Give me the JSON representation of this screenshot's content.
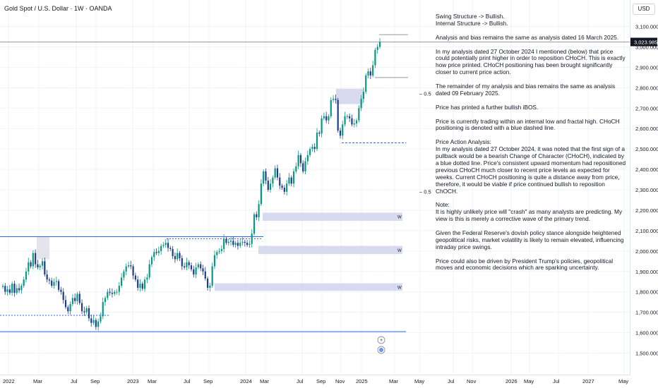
{
  "header": {
    "symbol_title": "Gold Spot / U.S. Dollar · 1W · OANDA",
    "currency_label": "USD"
  },
  "price_axis": {
    "ticks": [
      "3,100.000",
      "3,000.000",
      "2,900.000",
      "2,800.000",
      "2,700.000",
      "2,600.000",
      "2,500.000",
      "2,400.000",
      "2,300.000",
      "2,200.000",
      "2,100.000",
      "2,000.000",
      "1,900.000",
      "1,800.000",
      "1,700.000",
      "1,600.000",
      "1,500.000"
    ],
    "current_price_label": "3,023.985"
  },
  "time_axis": {
    "ticks": [
      "2022",
      "Mar",
      "Jul",
      "Sep",
      "2023",
      "Mar",
      "Jul",
      "Sep",
      "2024",
      "Mar",
      "Jul",
      "Sep",
      "Nov",
      "2025",
      "Mar",
      "May",
      "Jul",
      "Nov",
      "2026",
      "May",
      "Jul",
      "2027",
      "May"
    ]
  },
  "fib_labels": [
    "0.5",
    "0.5"
  ],
  "zone_labels": [
    "W",
    "W",
    "W"
  ],
  "notes": [
    "Swing Structure -> Bullish.",
    "Internal Structure -> Bullish.",
    "Analysis and bias remains the same as analysis dated 16 March 2025.",
    "In my analysis dated 27 October 2024 I mentioned (below) that price could potentially print higher in order to reposition CHoCH.  This is exactly how price printed.  CHoCH positioning has been brought significantly closer to current price action.",
    "The remainder of my analysis and bias remains the same as analysis dated 09 February 2025.",
    "Price has printed a further bullish iBOS.",
    "Price is currently trading within an internal low and fractal high.  CHoCH positioning is denoted with a blue dashed line.",
    "Price Action Analysis:\nIn my analysis dated 27 October 2024, it was noted that the first sign of a pullback would be a bearish Change of Character (CHoCH), indicated by a blue dotted line. Price's consistent upward momentum had repositioned previous CHoCH much closer to recent price levels as expected for weeks. Current CHoCH positioning is quite a distance away from price, therefore, it would be viable if price continued bullish to reposition ChOCH.",
    "Note:\nIt is highly unlikely price will \"crash\" as many analysts are predicting.  My view is this is merely a corrective wave of the primary trend.",
    "Given the Federal Reserve's dovish policy stance alongside heightened geopolitical risks, market volatility is likely to remain elevated, influencing intraday price swings.",
    "Price could also be driven by President Trump's policies, geopolitical moves and economic decisions which are sparking uncertainty."
  ],
  "colors": {
    "up": "#089981",
    "down": "#1f3b8f",
    "zone": "#d1d4ec",
    "structure_line": "#2962ff",
    "grid": "#f0f3fa"
  },
  "chart_data": {
    "type": "candlestick",
    "instrument": "Gold Spot / U.S. Dollar",
    "timeframe": "1W",
    "ylim": [
      1460,
      3135
    ],
    "last_price": 3023.985,
    "weekly_closes": [
      1829,
      1800,
      1812,
      1795,
      1840,
      1795,
      1818,
      1808,
      1830,
      1860,
      1900,
      1945,
      1925,
      1990,
      1935,
      1920,
      1928,
      1950,
      1885,
      1860,
      1855,
      1830,
      1848,
      1852,
      1810,
      1800,
      1760,
      1725,
      1705,
      1740,
      1770,
      1755,
      1790,
      1745,
      1705,
      1700,
      1720,
      1670,
      1648,
      1662,
      1628,
      1655,
      1680,
      1750,
      1770,
      1800,
      1795,
      1790,
      1800,
      1800,
      1830,
      1870,
      1900,
      1925,
      1930,
      1925,
      1880,
      1860,
      1820,
      1840,
      1815,
      1860,
      1870,
      1935,
      1970,
      1995,
      1990,
      2000,
      2025,
      2030,
      2040,
      2015,
      2010,
      1975,
      1960,
      1990,
      1965,
      1925,
      1920,
      1945,
      1930,
      1910,
      1885,
      1920,
      1935,
      1915,
      1900,
      1865,
      1820,
      1830,
      1925,
      1980,
      1995,
      2000,
      2010,
      2060,
      2040,
      2045,
      2050,
      2030,
      2040,
      2025,
      2040,
      2045,
      2040,
      2030,
      2035,
      2085,
      2180,
      2165,
      2230,
      2330,
      2390,
      2345,
      2300,
      2330,
      2360,
      2405,
      2360,
      2320,
      2310,
      2290,
      2330,
      2360,
      2330,
      2390,
      2415,
      2470,
      2430,
      2390,
      2440,
      2470,
      2500,
      2510,
      2500,
      2580,
      2575,
      2650,
      2660,
      2640,
      2660,
      2740,
      2745,
      2740,
      2590,
      2565,
      2620,
      2660,
      2660,
      2650,
      2620,
      2625,
      2640,
      2700,
      2745,
      2780,
      2860,
      2880,
      2860,
      2910,
      2985,
      3000,
      3024
    ]
  }
}
